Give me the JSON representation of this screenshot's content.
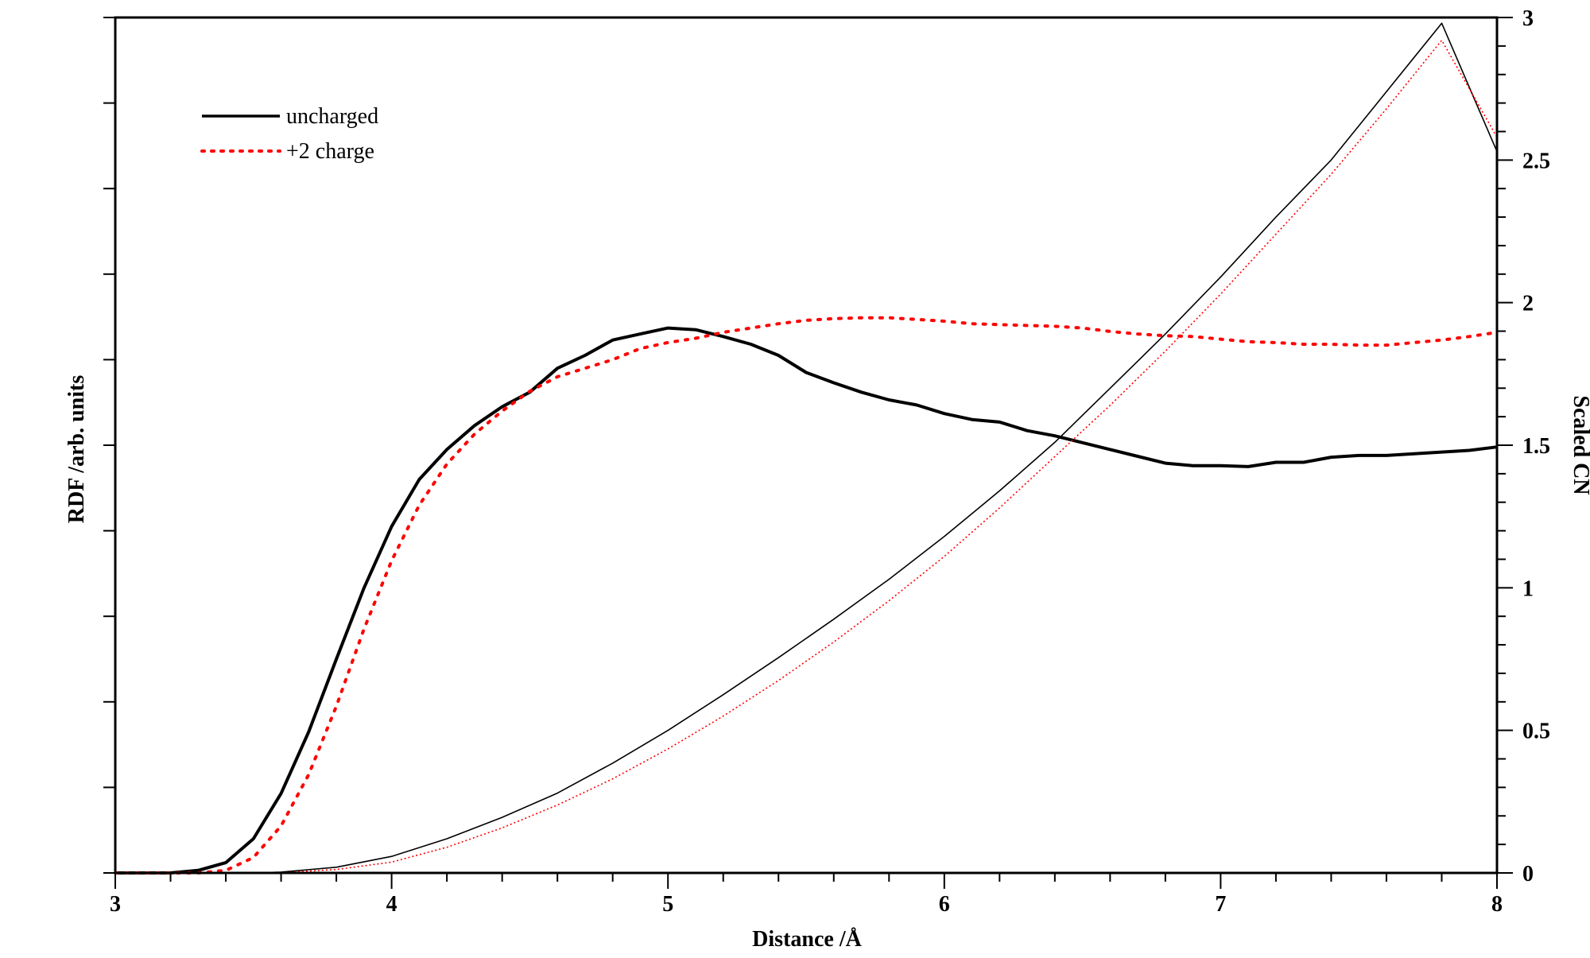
{
  "chart_data": {
    "type": "line",
    "title": "",
    "xlabel": "Distance /Å",
    "ylabel_left": "RDF /arb. units",
    "ylabel_right": "Scaled CN",
    "xlim": [
      3,
      8
    ],
    "ylim_left": [
      0,
      10
    ],
    "ylim_right": [
      0,
      3
    ],
    "x_ticks": [
      "3",
      "4",
      "5",
      "6",
      "7",
      "8"
    ],
    "y_ticks_right": [
      "0",
      "0.5",
      "1",
      "1.5",
      "2",
      "2.5",
      "3"
    ],
    "legend": {
      "position": "top-left",
      "entries": [
        {
          "label": "uncharged",
          "style": "solid",
          "color": "#000000"
        },
        {
          "label": "+2 charge",
          "style": "dotted",
          "color": "#ff0000"
        }
      ]
    },
    "series": [
      {
        "name": "uncharged",
        "kind": "rdf",
        "axis": "left",
        "color": "#000000",
        "style": "solid",
        "x": [
          3.0,
          3.1,
          3.2,
          3.3,
          3.4,
          3.5,
          3.6,
          3.7,
          3.8,
          3.9,
          4.0,
          4.1,
          4.2,
          4.3,
          4.4,
          4.5,
          4.6,
          4.7,
          4.8,
          4.9,
          5.0,
          5.1,
          5.2,
          5.3,
          5.4,
          5.5,
          5.6,
          5.7,
          5.8,
          5.9,
          6.0,
          6.1,
          6.2,
          6.3,
          6.4,
          6.5,
          6.6,
          6.7,
          6.8,
          6.9,
          7.0,
          7.1,
          7.2,
          7.3,
          7.4,
          7.5,
          7.6,
          7.7,
          7.8,
          7.9,
          8.0
        ],
        "y": [
          0.0,
          0.0,
          0.0,
          0.03,
          0.12,
          0.4,
          0.93,
          1.65,
          2.5,
          3.33,
          4.05,
          4.6,
          4.95,
          5.23,
          5.45,
          5.62,
          5.9,
          6.05,
          6.23,
          6.3,
          6.37,
          6.35,
          6.27,
          6.18,
          6.05,
          5.85,
          5.73,
          5.62,
          5.53,
          5.47,
          5.37,
          5.3,
          5.27,
          5.17,
          5.11,
          5.03,
          4.95,
          4.87,
          4.79,
          4.76,
          4.76,
          4.75,
          4.8,
          4.8,
          4.86,
          4.88,
          4.88,
          4.9,
          4.92,
          4.94,
          4.98
        ]
      },
      {
        "name": "+2 charge",
        "kind": "rdf",
        "axis": "left",
        "color": "#ff0000",
        "style": "dotted",
        "x": [
          3.0,
          3.1,
          3.2,
          3.3,
          3.4,
          3.5,
          3.6,
          3.7,
          3.8,
          3.9,
          4.0,
          4.1,
          4.2,
          4.3,
          4.4,
          4.5,
          4.6,
          4.7,
          4.8,
          4.9,
          5.0,
          5.1,
          5.2,
          5.3,
          5.4,
          5.5,
          5.6,
          5.7,
          5.8,
          5.9,
          6.0,
          6.1,
          6.2,
          6.3,
          6.4,
          6.5,
          6.6,
          6.7,
          6.8,
          6.9,
          7.0,
          7.1,
          7.2,
          7.3,
          7.4,
          7.5,
          7.6,
          7.7,
          7.8,
          7.9,
          8.0
        ],
        "y": [
          0.0,
          0.0,
          0.0,
          0.0,
          0.03,
          0.18,
          0.55,
          1.15,
          1.95,
          2.85,
          3.65,
          4.3,
          4.78,
          5.13,
          5.4,
          5.63,
          5.8,
          5.9,
          6.0,
          6.13,
          6.2,
          6.25,
          6.32,
          6.37,
          6.42,
          6.46,
          6.48,
          6.49,
          6.49,
          6.47,
          6.45,
          6.42,
          6.41,
          6.4,
          6.39,
          6.37,
          6.33,
          6.3,
          6.28,
          6.27,
          6.24,
          6.21,
          6.2,
          6.18,
          6.18,
          6.17,
          6.17,
          6.2,
          6.23,
          6.27,
          6.32
        ]
      },
      {
        "name": "uncharged CN",
        "kind": "cn",
        "axis": "right",
        "color": "#000000",
        "style": "solid-thin",
        "x": [
          3.0,
          3.5,
          3.6,
          3.8,
          4.0,
          4.2,
          4.4,
          4.6,
          4.8,
          5.0,
          5.2,
          5.4,
          5.6,
          5.8,
          6.0,
          6.2,
          6.4,
          6.6,
          6.8,
          7.0,
          7.2,
          7.4,
          7.6,
          7.8,
          8.0
        ],
        "y": [
          0.0,
          0.0,
          0.003,
          0.02,
          0.058,
          0.12,
          0.195,
          0.28,
          0.385,
          0.5,
          0.625,
          0.755,
          0.89,
          1.03,
          1.18,
          1.34,
          1.51,
          1.7,
          1.89,
          2.09,
          2.3,
          2.5,
          2.74,
          2.98,
          2.53
        ]
      },
      {
        "name": "+2 charge CN",
        "kind": "cn",
        "axis": "right",
        "color": "#ff0000",
        "style": "dotted-thin",
        "x": [
          3.0,
          3.5,
          3.6,
          3.8,
          4.0,
          4.2,
          4.4,
          4.6,
          4.8,
          5.0,
          5.2,
          5.4,
          5.6,
          5.8,
          6.0,
          6.2,
          6.4,
          6.6,
          6.8,
          7.0,
          7.2,
          7.4,
          7.6,
          7.8,
          8.0
        ],
        "y": [
          0.0,
          0.0,
          0.001,
          0.012,
          0.038,
          0.09,
          0.158,
          0.238,
          0.33,
          0.435,
          0.55,
          0.675,
          0.81,
          0.955,
          1.11,
          1.28,
          1.46,
          1.64,
          1.83,
          2.03,
          2.24,
          2.45,
          2.68,
          2.92,
          2.58
        ]
      }
    ]
  }
}
